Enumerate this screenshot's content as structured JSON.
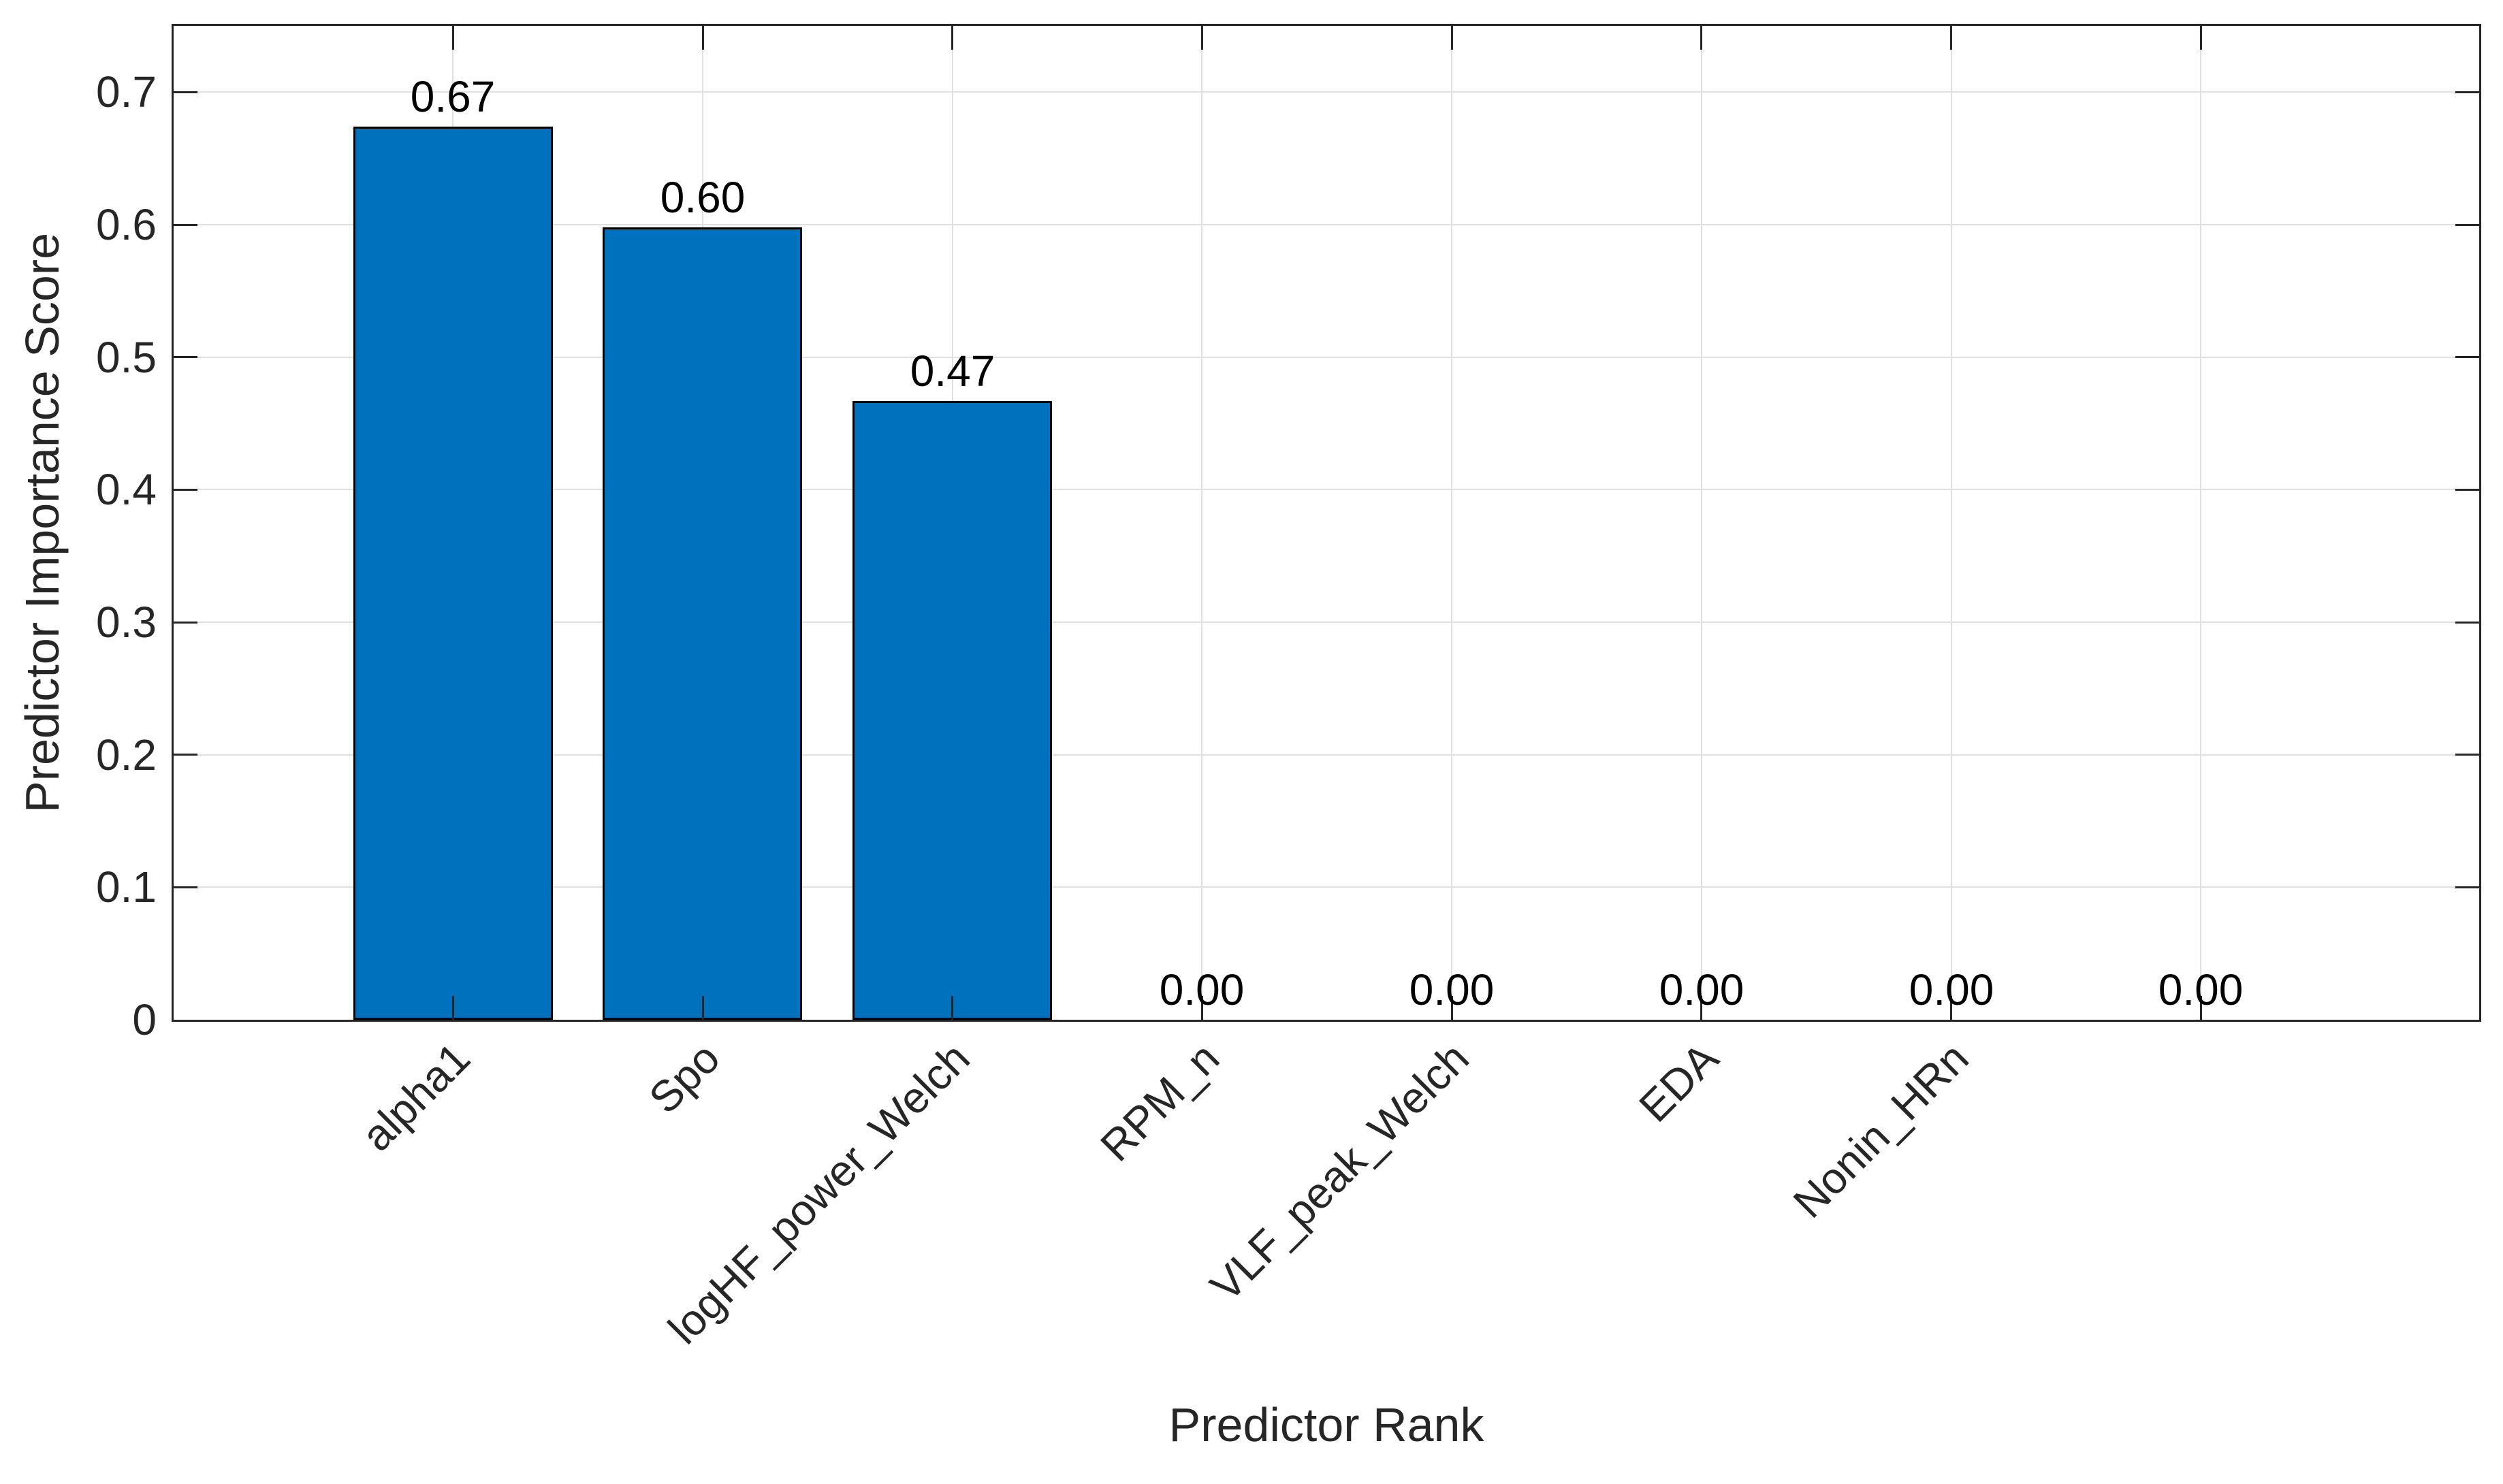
{
  "chart_data": {
    "type": "bar",
    "title": "",
    "xlabel": "Predictor Rank",
    "ylabel": "Predictor Importance Score",
    "categories": [
      "alpha1",
      "Spo",
      "logHF_power_Welch",
      "RPM_n",
      "VLF_peak_Welch",
      "EDA",
      "Nonin_HRn",
      ""
    ],
    "values": [
      0.674,
      0.598,
      0.467,
      0,
      0,
      0,
      0,
      0
    ],
    "value_labels": [
      "0.67",
      "0.60",
      "0.47",
      "0.00",
      "0.00",
      "0.00",
      "0.00",
      "0.00"
    ],
    "y_ticks": [
      0,
      0.1,
      0.2,
      0.3,
      0.4,
      0.5,
      0.6,
      0.7
    ],
    "y_tick_labels": [
      "0",
      "0.1",
      "0.2",
      "0.3",
      "0.4",
      "0.5",
      "0.6",
      "0.7"
    ],
    "ylim": [
      0,
      0.75
    ],
    "x_tick_label_rotation_deg": 45,
    "grid": true,
    "legend": "none",
    "bar_color": "#0072BD",
    "bar_edge_color": "#000000",
    "axis_color": "#262626",
    "grid_color": "#e0e0e0",
    "value_label_color": "#000000",
    "background_color": "#ffffff"
  }
}
